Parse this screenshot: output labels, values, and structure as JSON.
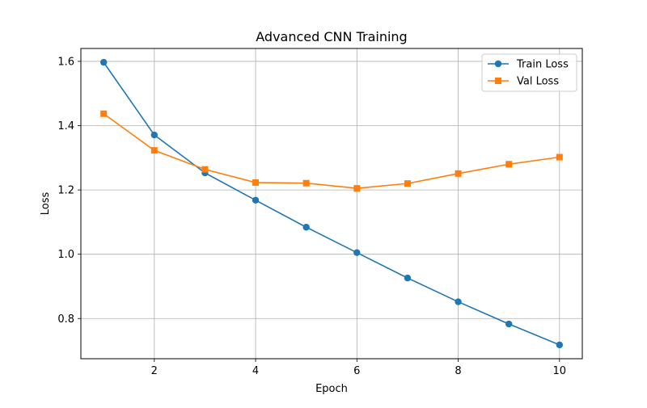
{
  "chart_data": {
    "type": "line",
    "title": "Advanced CNN Training",
    "xlabel": "Epoch",
    "ylabel": "Loss",
    "xlim": [
      0.55,
      10.45
    ],
    "ylim": [
      0.675,
      1.64
    ],
    "x_ticks": [
      2,
      4,
      6,
      8,
      10
    ],
    "y_ticks": [
      0.8,
      1.0,
      1.2,
      1.4,
      1.6
    ],
    "x_tick_labels": [
      "2",
      "4",
      "6",
      "8",
      "10"
    ],
    "y_tick_labels": [
      "0.8",
      "1.0",
      "1.2",
      "1.4",
      "1.6"
    ],
    "grid": true,
    "legend_position": "top-right",
    "x": [
      1,
      2,
      3,
      4,
      5,
      6,
      7,
      8,
      9,
      10
    ],
    "series": [
      {
        "name": "Train Loss",
        "color": "#1f77b4",
        "marker": "circle",
        "values": [
          1.597,
          1.371,
          1.253,
          1.168,
          1.084,
          1.005,
          0.926,
          0.852,
          0.783,
          0.718
        ]
      },
      {
        "name": "Val Loss",
        "color": "#ff7f0e",
        "marker": "square",
        "values": [
          1.437,
          1.323,
          1.264,
          1.223,
          1.221,
          1.205,
          1.22,
          1.251,
          1.28,
          1.302
        ]
      }
    ]
  }
}
